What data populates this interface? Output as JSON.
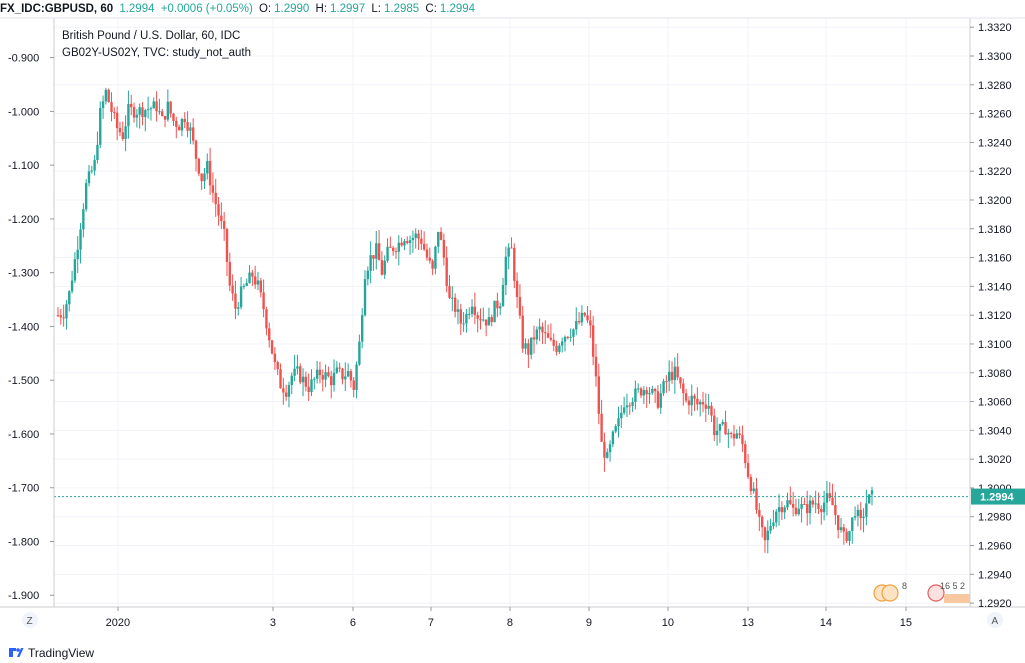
{
  "header": {
    "symbol": "FX_IDC:GBPUSD, 60",
    "last": "1.2994",
    "change": "+0.0006 (+0.05%)",
    "o_label": "O:",
    "o_val": "1.2990",
    "h_label": "H:",
    "h_val": "1.2997",
    "l_label": "L:",
    "l_val": "1.2985",
    "c_label": "C:",
    "c_val": "1.2994"
  },
  "legend": {
    "line1": "British Pound / U.S. Dollar, 60, IDC",
    "line2": "GB02Y-US02Y, TVC: study_not_auth"
  },
  "footer": {
    "brand": "TradingView",
    "z_button": "Z",
    "a_button": "A"
  },
  "colors": {
    "up": "#26a69a",
    "down": "#ef5350",
    "price_line": "#26a69a",
    "grid": "#f0f3fa",
    "axis": "#cccccc"
  },
  "events": {
    "event_a_count": "8",
    "event_b_text": "16 5 2"
  },
  "chart_data": {
    "type": "candlestick",
    "right_axis": {
      "ticks": [
        "1.3320",
        "1.3300",
        "1.3280",
        "1.3260",
        "1.3240",
        "1.3220",
        "1.3200",
        "1.3180",
        "1.3160",
        "1.3140",
        "1.3120",
        "1.3100",
        "1.3080",
        "1.3060",
        "1.3040",
        "1.3020",
        "1.3000",
        "1.2980",
        "1.2960",
        "1.2940",
        "1.2920"
      ],
      "range": [
        1.2918,
        1.3325
      ]
    },
    "left_axis": {
      "ticks": [
        "-0.900",
        "-1.000",
        "-1.100",
        "-1.200",
        "-1.300",
        "-1.400",
        "-1.500",
        "-1.600",
        "-1.700",
        "-1.800",
        "-1.900"
      ],
      "range": [
        -1.92,
        -0.83
      ]
    },
    "x_labels": [
      "2020",
      "3",
      "6",
      "7",
      "8",
      "9",
      "10",
      "13",
      "14",
      "15"
    ],
    "current_price": "1.2994",
    "anchors": [
      [
        0,
        1.312
      ],
      [
        2,
        1.3122
      ],
      [
        4,
        1.3135
      ],
      [
        7,
        1.317
      ],
      [
        10,
        1.321
      ],
      [
        13,
        1.3225
      ],
      [
        15,
        1.326
      ],
      [
        17,
        1.3275
      ],
      [
        19,
        1.3262
      ],
      [
        21,
        1.325
      ],
      [
        23,
        1.3245
      ],
      [
        25,
        1.3262
      ],
      [
        27,
        1.3262
      ],
      [
        29,
        1.3262
      ],
      [
        31,
        1.3263
      ],
      [
        33,
        1.3264
      ],
      [
        35,
        1.3265
      ],
      [
        37,
        1.3255
      ],
      [
        39,
        1.3265
      ],
      [
        41,
        1.3255
      ],
      [
        43,
        1.3252
      ],
      [
        45,
        1.3258
      ],
      [
        47,
        1.3248
      ],
      [
        49,
        1.323
      ],
      [
        51,
        1.3215
      ],
      [
        53,
        1.3223
      ],
      [
        55,
        1.3205
      ],
      [
        57,
        1.319
      ],
      [
        59,
        1.3175
      ],
      [
        61,
        1.314
      ],
      [
        63,
        1.3125
      ],
      [
        65,
        1.3135
      ],
      [
        67,
        1.3142
      ],
      [
        69,
        1.3148
      ],
      [
        71,
        1.314
      ],
      [
        73,
        1.3125
      ],
      [
        75,
        1.3105
      ],
      [
        77,
        1.3085
      ],
      [
        79,
        1.3072
      ],
      [
        81,
        1.3068
      ],
      [
        83,
        1.3078
      ],
      [
        85,
        1.308
      ],
      [
        87,
        1.3075
      ],
      [
        89,
        1.307
      ],
      [
        91,
        1.3075
      ],
      [
        93,
        1.308
      ],
      [
        95,
        1.3078
      ],
      [
        97,
        1.3075
      ],
      [
        99,
        1.308
      ],
      [
        101,
        1.3078
      ],
      [
        103,
        1.308
      ],
      [
        105,
        1.307
      ],
      [
        107,
        1.31
      ],
      [
        109,
        1.315
      ],
      [
        111,
        1.316
      ],
      [
        113,
        1.3165
      ],
      [
        115,
        1.315
      ],
      [
        117,
        1.3163
      ],
      [
        119,
        1.3167
      ],
      [
        121,
        1.317
      ],
      [
        123,
        1.3175
      ],
      [
        125,
        1.3173
      ],
      [
        127,
        1.3175
      ],
      [
        129,
        1.3172
      ],
      [
        131,
        1.316
      ],
      [
        133,
        1.315
      ],
      [
        135,
        1.318
      ],
      [
        137,
        1.316
      ],
      [
        139,
        1.313
      ],
      [
        141,
        1.3125
      ],
      [
        143,
        1.3115
      ],
      [
        145,
        1.312
      ],
      [
        147,
        1.313
      ],
      [
        149,
        1.312
      ],
      [
        151,
        1.3118
      ],
      [
        153,
        1.3115
      ],
      [
        155,
        1.3125
      ],
      [
        157,
        1.313
      ],
      [
        159,
        1.316
      ],
      [
        161,
        1.3165
      ],
      [
        163,
        1.313
      ],
      [
        165,
        1.31
      ],
      [
        167,
        1.3095
      ],
      [
        169,
        1.3105
      ],
      [
        171,
        1.311
      ],
      [
        173,
        1.3105
      ],
      [
        175,
        1.31
      ],
      [
        177,
        1.3098
      ],
      [
        179,
        1.3105
      ],
      [
        181,
        1.3108
      ],
      [
        183,
        1.311
      ],
      [
        185,
        1.3115
      ],
      [
        187,
        1.312
      ],
      [
        189,
        1.311
      ],
      [
        191,
        1.3075
      ],
      [
        193,
        1.303
      ],
      [
        195,
        1.302
      ],
      [
        197,
        1.3035
      ],
      [
        199,
        1.3045
      ],
      [
        201,
        1.306
      ],
      [
        203,
        1.3062
      ],
      [
        205,
        1.3065
      ],
      [
        207,
        1.3068
      ],
      [
        209,
        1.307
      ],
      [
        211,
        1.3065
      ],
      [
        213,
        1.306
      ],
      [
        215,
        1.307
      ],
      [
        217,
        1.3078
      ],
      [
        219,
        1.308
      ],
      [
        221,
        1.307
      ],
      [
        223,
        1.306
      ],
      [
        225,
        1.3062
      ],
      [
        227,
        1.3058
      ],
      [
        229,
        1.306
      ],
      [
        231,
        1.3058
      ],
      [
        233,
        1.304
      ],
      [
        235,
        1.304
      ],
      [
        237,
        1.3042
      ],
      [
        239,
        1.3035
      ],
      [
        241,
        1.3038
      ],
      [
        243,
        1.303
      ],
      [
        245,
        1.301
      ],
      [
        247,
        1.2995
      ],
      [
        249,
        1.2975
      ],
      [
        251,
        1.2962
      ],
      [
        253,
        1.2975
      ],
      [
        255,
        1.2985
      ],
      [
        257,
        1.2988
      ],
      [
        259,
        1.299
      ],
      [
        261,
        1.2985
      ],
      [
        263,
        1.2988
      ],
      [
        265,
        1.2985
      ],
      [
        267,
        1.2988
      ],
      [
        269,
        1.299
      ],
      [
        271,
        1.2988
      ],
      [
        273,
        1.2992
      ],
      [
        275,
        1.2988
      ],
      [
        277,
        1.2975
      ],
      [
        279,
        1.2965
      ],
      [
        281,
        1.297
      ],
      [
        283,
        1.2985
      ],
      [
        285,
        1.2975
      ],
      [
        287,
        1.299
      ],
      [
        289,
        1.2994
      ]
    ]
  }
}
